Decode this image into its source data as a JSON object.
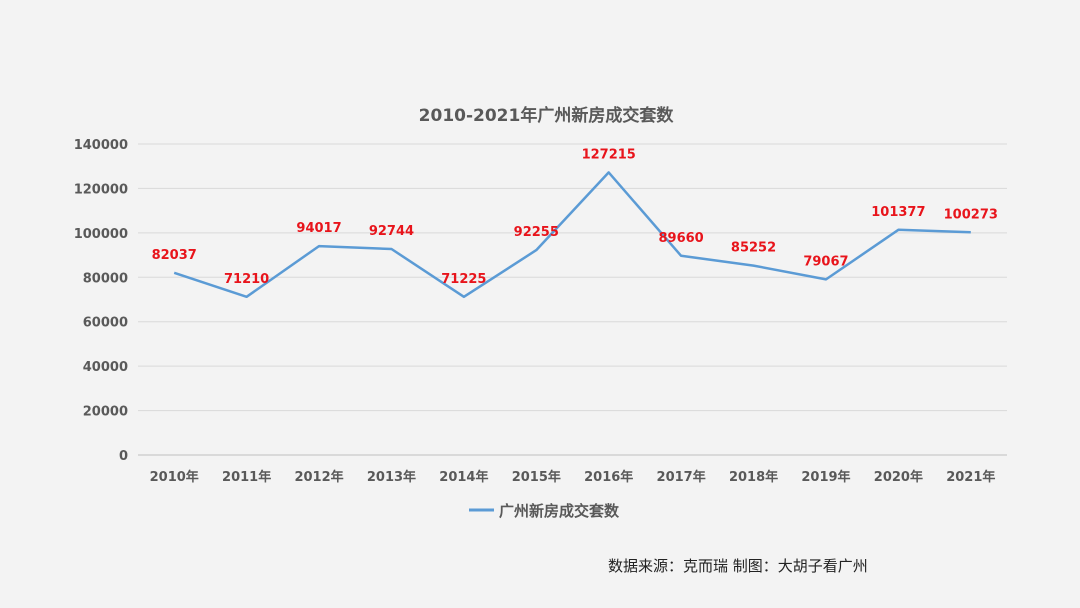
{
  "chart_data": {
    "type": "line",
    "title": "2010-2021年广州新房成交套数",
    "categories": [
      "2010年",
      "2011年",
      "2012年",
      "2013年",
      "2014年",
      "2015年",
      "2016年",
      "2017年",
      "2018年",
      "2019年",
      "2020年",
      "2021年"
    ],
    "series": [
      {
        "name": "广州新房成交套数",
        "values": [
          82037,
          71210,
          94017,
          92744,
          71225,
          92255,
          127215,
          89660,
          85252,
          79067,
          101377,
          100273
        ],
        "color": "#5b9bd5"
      }
    ],
    "yticks": [
      "0",
      "20000",
      "40000",
      "60000",
      "80000",
      "100000",
      "120000",
      "140000"
    ],
    "ylim": [
      0,
      140000
    ],
    "grid": true,
    "legend_position": "bottom",
    "data_label_color": "#e8141b",
    "xlabel": "",
    "ylabel": ""
  },
  "footer": {
    "source_note": "数据来源：克而瑞   制图：大胡子看广州"
  }
}
